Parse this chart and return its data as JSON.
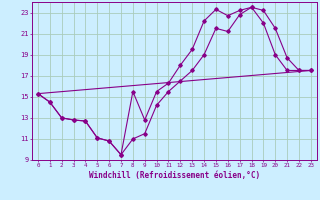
{
  "xlabel": "Windchill (Refroidissement éolien,°C)",
  "bg_color": "#cceeff",
  "grid_color": "#aaccbb",
  "line_color": "#880088",
  "xlim": [
    -0.5,
    23.5
  ],
  "ylim": [
    9,
    24
  ],
  "yticks": [
    9,
    11,
    13,
    15,
    17,
    19,
    21,
    23
  ],
  "xticks": [
    0,
    1,
    2,
    3,
    4,
    5,
    6,
    7,
    8,
    9,
    10,
    11,
    12,
    13,
    14,
    15,
    16,
    17,
    18,
    19,
    20,
    21,
    22,
    23
  ],
  "line1_x": [
    0,
    1,
    2,
    3,
    4,
    5,
    6,
    7,
    8,
    9,
    10,
    11,
    12,
    13,
    14,
    15,
    16,
    17,
    18,
    19,
    20,
    21,
    22,
    23
  ],
  "line1_y": [
    15.3,
    14.5,
    13.0,
    12.8,
    12.7,
    11.1,
    10.8,
    9.5,
    15.5,
    12.8,
    15.5,
    16.3,
    18.0,
    19.5,
    22.2,
    23.3,
    22.7,
    23.2,
    23.5,
    23.2,
    21.5,
    18.7,
    17.5,
    17.5
  ],
  "line2_x": [
    0,
    1,
    2,
    3,
    4,
    5,
    6,
    7,
    8,
    9,
    10,
    11,
    12,
    13,
    14,
    15,
    16,
    17,
    18,
    19,
    20,
    21,
    22,
    23
  ],
  "line2_y": [
    15.3,
    14.5,
    13.0,
    12.8,
    12.7,
    11.1,
    10.8,
    9.5,
    11.0,
    11.5,
    14.2,
    15.5,
    16.5,
    17.5,
    19.0,
    21.5,
    21.2,
    22.8,
    23.5,
    22.0,
    19.0,
    17.5,
    17.5,
    17.5
  ],
  "line3_x": [
    0,
    23
  ],
  "line3_y": [
    15.3,
    17.5
  ]
}
